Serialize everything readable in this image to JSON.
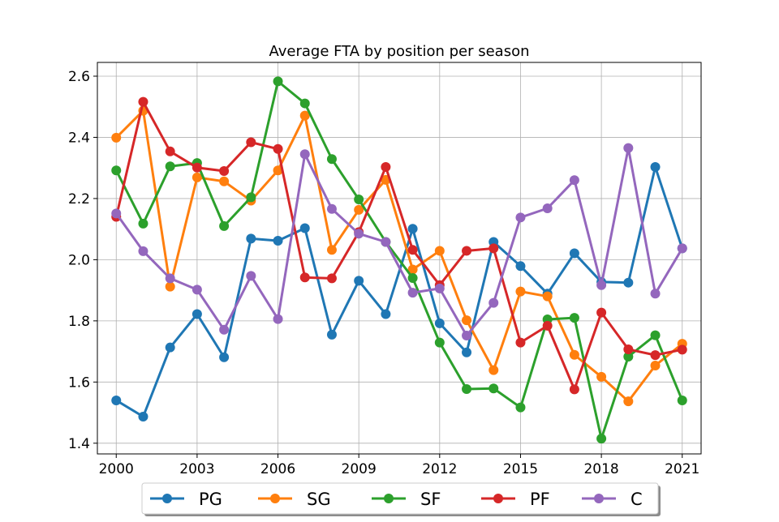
{
  "chart_data": {
    "type": "line",
    "title": "Average FTA by position per season",
    "xlabel": "",
    "ylabel": "",
    "x": [
      2000,
      2001,
      2002,
      2003,
      2004,
      2005,
      2006,
      2007,
      2008,
      2009,
      2010,
      2011,
      2012,
      2013,
      2014,
      2015,
      2016,
      2017,
      2018,
      2019,
      2020,
      2021
    ],
    "xlim": [
      1999.3,
      2021.7
    ],
    "ylim": [
      1.365,
      2.645
    ],
    "xticks": [
      2000,
      2003,
      2006,
      2009,
      2012,
      2015,
      2018,
      2021
    ],
    "xtick_labels": [
      "2000",
      "2003",
      "2006",
      "2009",
      "2012",
      "2015",
      "2018",
      "2021"
    ],
    "yticks": [
      1.4,
      1.6,
      1.8,
      2.0,
      2.2,
      2.4,
      2.6
    ],
    "ytick_labels": [
      "1.4",
      "1.6",
      "1.8",
      "2.0",
      "2.2",
      "2.4",
      "2.6"
    ],
    "grid": true,
    "legend_position": "bottom-center",
    "series": [
      {
        "name": "PG",
        "color": "#1f77b4",
        "values": [
          1.54,
          1.487,
          1.713,
          1.822,
          1.681,
          2.069,
          2.062,
          2.103,
          1.755,
          1.931,
          1.822,
          2.101,
          1.792,
          1.697,
          2.058,
          1.979,
          1.889,
          2.021,
          1.927,
          1.925,
          2.303,
          2.037
        ]
      },
      {
        "name": "SG",
        "color": "#ff7f0e",
        "values": [
          2.399,
          2.487,
          1.912,
          2.269,
          2.256,
          2.193,
          2.292,
          2.471,
          2.032,
          2.163,
          2.261,
          1.968,
          2.029,
          1.802,
          1.639,
          1.896,
          1.88,
          1.689,
          1.617,
          1.537,
          1.654,
          1.725
        ]
      },
      {
        "name": "SF",
        "color": "#2ca02c",
        "values": [
          2.292,
          2.118,
          2.305,
          2.316,
          2.11,
          2.204,
          2.583,
          2.511,
          2.329,
          2.197,
          2.058,
          1.94,
          1.729,
          1.577,
          1.579,
          1.517,
          1.805,
          1.81,
          1.415,
          1.683,
          1.753,
          1.54
        ]
      },
      {
        "name": "PF",
        "color": "#d62728",
        "values": [
          2.14,
          2.516,
          2.354,
          2.301,
          2.29,
          2.384,
          2.362,
          1.942,
          1.939,
          2.09,
          2.303,
          2.032,
          1.917,
          2.029,
          2.037,
          1.729,
          1.784,
          1.576,
          1.827,
          1.707,
          1.688,
          1.706
        ]
      },
      {
        "name": "C",
        "color": "#9467bd",
        "values": [
          2.151,
          2.028,
          1.939,
          1.902,
          1.771,
          1.947,
          1.806,
          2.345,
          2.166,
          2.085,
          2.058,
          1.892,
          1.906,
          1.752,
          1.859,
          2.138,
          2.168,
          2.26,
          1.917,
          2.365,
          1.889,
          2.037
        ]
      }
    ]
  }
}
